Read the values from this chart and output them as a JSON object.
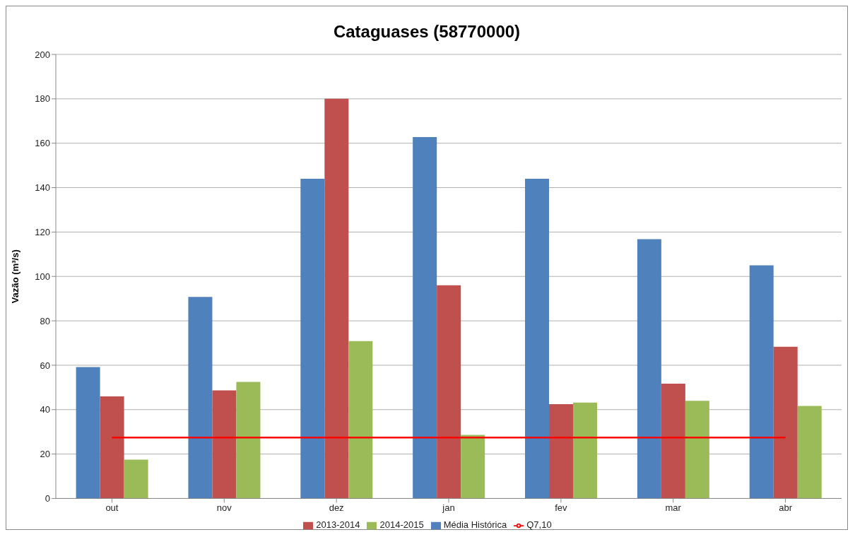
{
  "chart_data": {
    "type": "bar",
    "title": "Cataguases (58770000)",
    "ylabel": "Vazão (m³/s)",
    "categories": [
      "out",
      "nov",
      "dez",
      "jan",
      "fev",
      "mar",
      "abr"
    ],
    "series": [
      {
        "name": "Média Histórica",
        "color": "#4f81bd",
        "values": [
          59.2,
          90.8,
          144,
          162.8,
          144,
          116.8,
          105
        ]
      },
      {
        "name": "2013-2014",
        "color": "#c0504d",
        "values": [
          46,
          48.7,
          180,
          96,
          42.5,
          51.7,
          68.3
        ]
      },
      {
        "name": "2014-2015",
        "color": "#9bbb59",
        "values": [
          17.5,
          52.5,
          70.9,
          28.6,
          43.2,
          44,
          41.7
        ]
      },
      {
        "name": "Q7,10",
        "type": "line",
        "color": "#ff0000",
        "values": [
          27.4,
          27.4,
          27.4,
          27.4,
          27.4,
          27.4,
          27.4
        ]
      }
    ],
    "ylim": [
      0,
      200
    ],
    "yticks": [
      0,
      20,
      40,
      60,
      80,
      100,
      120,
      140,
      160,
      180,
      200
    ],
    "grid": "y",
    "legend": "bottom",
    "marker": "none",
    "line_style": "solid"
  }
}
